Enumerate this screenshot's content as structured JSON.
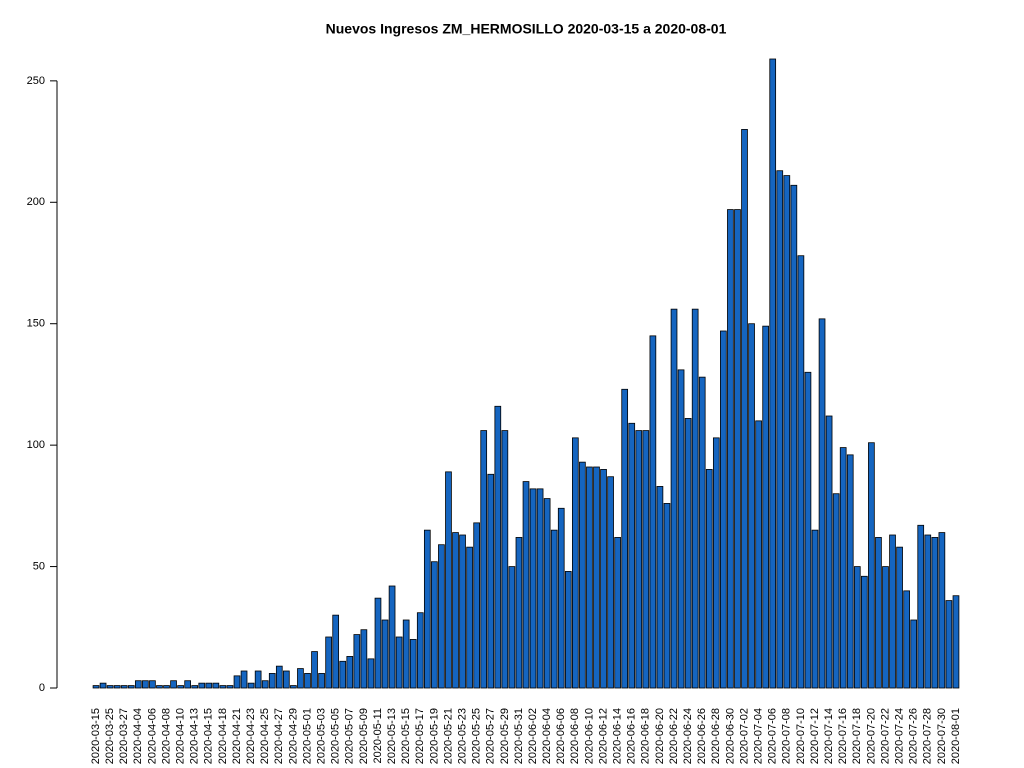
{
  "chart_data": {
    "type": "bar",
    "title": "Nuevos Ingresos ZM_HERMOSILLO 2020-03-15 a 2020-08-01",
    "categories": [
      "2020-03-15",
      null,
      "2020-03-25",
      null,
      "2020-03-27",
      null,
      "2020-04-04",
      null,
      "2020-04-06",
      null,
      "2020-04-08",
      null,
      "2020-04-10",
      null,
      "2020-04-13",
      null,
      "2020-04-15",
      null,
      "2020-04-18",
      null,
      "2020-04-21",
      null,
      "2020-04-23",
      null,
      "2020-04-25",
      null,
      "2020-04-27",
      null,
      "2020-04-29",
      null,
      "2020-05-01",
      null,
      "2020-05-03",
      null,
      "2020-05-05",
      null,
      "2020-05-07",
      null,
      "2020-05-09",
      null,
      "2020-05-11",
      null,
      "2020-05-13",
      null,
      "2020-05-15",
      null,
      "2020-05-17",
      null,
      "2020-05-19",
      null,
      "2020-05-21",
      null,
      "2020-05-23",
      null,
      "2020-05-25",
      null,
      "2020-05-27",
      null,
      "2020-05-29",
      null,
      "2020-05-31",
      null,
      "2020-06-02",
      null,
      "2020-06-04",
      null,
      "2020-06-06",
      null,
      "2020-06-08",
      null,
      "2020-06-10",
      null,
      "2020-06-12",
      null,
      "2020-06-14",
      null,
      "2020-06-16",
      null,
      "2020-06-18",
      null,
      "2020-06-20",
      null,
      "2020-06-22",
      null,
      "2020-06-24",
      null,
      "2020-06-26",
      null,
      "2020-06-28",
      null,
      "2020-06-30",
      null,
      "2020-07-02",
      null,
      "2020-07-04",
      null,
      "2020-07-06",
      null,
      "2020-07-08",
      null,
      "2020-07-10",
      null,
      "2020-07-12",
      null,
      "2020-07-14",
      null,
      "2020-07-16",
      null,
      "2020-07-18",
      null,
      "2020-07-20",
      null,
      "2020-07-22",
      null,
      "2020-07-24",
      null,
      "2020-07-26",
      null,
      "2020-07-28",
      null,
      "2020-07-30",
      null,
      "2020-08-01"
    ],
    "values": [
      1,
      2,
      1,
      1,
      1,
      1,
      3,
      3,
      3,
      1,
      1,
      3,
      1,
      3,
      1,
      2,
      2,
      2,
      1,
      1,
      5,
      7,
      2,
      7,
      3,
      6,
      9,
      7,
      1,
      8,
      6,
      15,
      6,
      21,
      30,
      11,
      13,
      22,
      24,
      12,
      37,
      28,
      42,
      21,
      28,
      20,
      31,
      65,
      52,
      59,
      89,
      64,
      63,
      58,
      68,
      106,
      88,
      116,
      106,
      50,
      62,
      85,
      82,
      82,
      78,
      65,
      74,
      48,
      103,
      93,
      91,
      91,
      90,
      87,
      62,
      123,
      109,
      106,
      106,
      145,
      83,
      76,
      156,
      131,
      111,
      156,
      128,
      90,
      103,
      147,
      197,
      197,
      230,
      150,
      110,
      149,
      259,
      213,
      211,
      207,
      178,
      130,
      65,
      152,
      112,
      80,
      99,
      96,
      50,
      46,
      101,
      62,
      50,
      63,
      58,
      40,
      28,
      67,
      63,
      62,
      64,
      36,
      38
    ],
    "color": "#1565c0",
    "ylim": [
      0,
      259
    ],
    "yticks": [
      0,
      50,
      100,
      150,
      200,
      250
    ]
  }
}
